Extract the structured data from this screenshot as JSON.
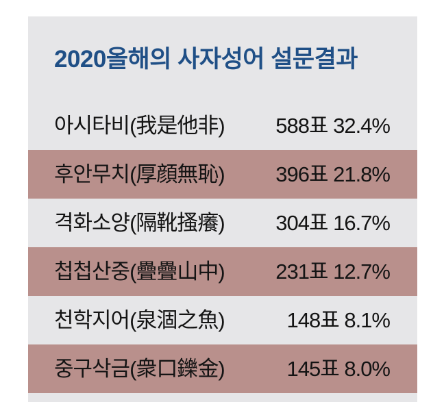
{
  "survey": {
    "title": "2020올해의 사자성어 설문결과",
    "rows": [
      {
        "label": "아시타비(我是他非)",
        "value": "588표 32.4%",
        "shaded": false
      },
      {
        "label": "후안무치(厚顔無恥)",
        "value": "396표 21.8%",
        "shaded": true
      },
      {
        "label": "격화소양(隔靴搔癢)",
        "value": "304표 16.7%",
        "shaded": false
      },
      {
        "label": "첩첩산중(疊疊山中)",
        "value": "231표 12.7%",
        "shaded": true
      },
      {
        "label": "천학지어(泉涸之魚)",
        "value": "148표 8.1%",
        "shaded": false
      },
      {
        "label": "중구삭금(衆口鑠金)",
        "value": "145표 8.0%",
        "shaded": true
      }
    ]
  },
  "colors": {
    "title": "#1f4f86",
    "panel": "#e6e6e8",
    "row_shade": "#b9908c",
    "text": "#141414"
  }
}
